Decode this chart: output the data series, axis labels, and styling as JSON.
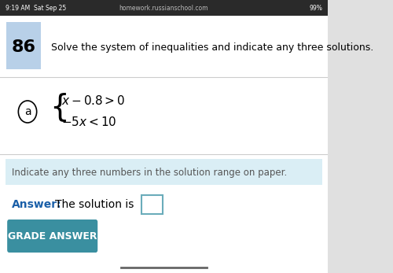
{
  "status_bar_text": "9:19 AM  Sat Sep 25",
  "status_bar_right": "99%",
  "url_text": "homework.russianschool.com",
  "problem_number": "86",
  "problem_title": "Solve the system of inequalities and indicate any three solutions.",
  "part_label": "a",
  "hint_text": "Indicate any three numbers in the solution range on paper.",
  "answer_label": "Answer:",
  "answer_text": "The solution is",
  "button_text": "GRADE ANSWER",
  "bg_hint": "#daeef5",
  "number_bg": "#b8d0e8",
  "button_color": "#3a8fa0",
  "button_text_color": "#ffffff",
  "answer_label_color": "#1a5fa8",
  "status_bar_bg": "#2a2a2a",
  "divider_color": "#cccccc",
  "white": "#ffffff"
}
